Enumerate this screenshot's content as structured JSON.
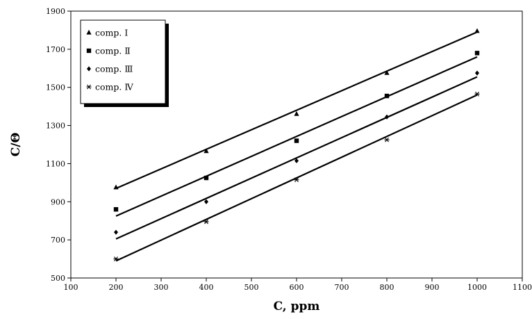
{
  "chart_data": {
    "type": "scatter",
    "title": "",
    "xlabel": "C, ppm",
    "ylabel": "C/Θ",
    "xlim": [
      100,
      1100
    ],
    "ylim": [
      500,
      1900
    ],
    "xticks": [
      100,
      200,
      300,
      400,
      500,
      600,
      700,
      800,
      900,
      1000,
      1100
    ],
    "yticks": [
      500,
      700,
      900,
      1100,
      1300,
      1500,
      1700,
      1900
    ],
    "grid": false,
    "legend_position": "top-left",
    "x": [
      200,
      400,
      600,
      800,
      1000
    ],
    "series": [
      {
        "name": "comp. Ⅰ",
        "marker": "triangle",
        "values": [
          975,
          1165,
          1360,
          1575,
          1795
        ],
        "fit": [
          970,
          1175,
          1380,
          1585,
          1790
        ]
      },
      {
        "name": "comp. Ⅱ",
        "marker": "square",
        "values": [
          860,
          1025,
          1220,
          1455,
          1680
        ],
        "fit": [
          825,
          1035,
          1245,
          1455,
          1660
        ]
      },
      {
        "name": "comp. Ⅲ",
        "marker": "diamond",
        "values": [
          740,
          900,
          1115,
          1345,
          1575
        ],
        "fit": [
          705,
          915,
          1125,
          1340,
          1555
        ]
      },
      {
        "name": "comp. Ⅳ",
        "marker": "asterisk",
        "values": [
          600,
          795,
          1015,
          1225,
          1465
        ],
        "fit": [
          590,
          805,
          1020,
          1235,
          1460
        ]
      }
    ]
  }
}
